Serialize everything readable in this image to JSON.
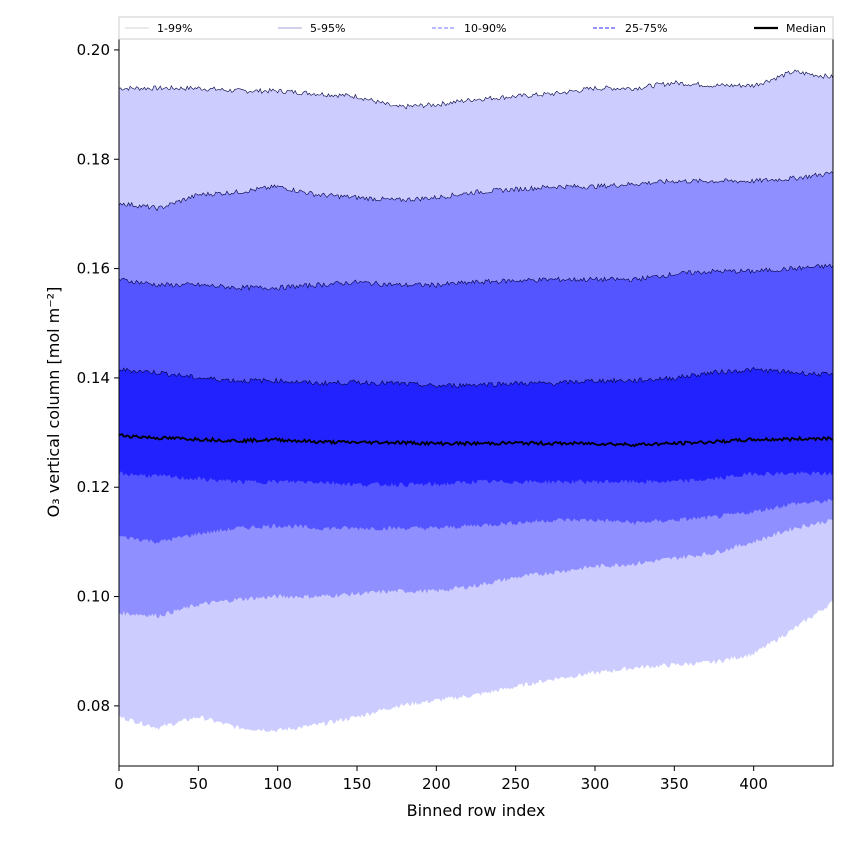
{
  "chart_data": {
    "type": "area",
    "title": "",
    "xlabel": "Binned row index",
    "ylabel": "O₃ vertical column [mol m⁻²]",
    "xlim": [
      0,
      450
    ],
    "ylim": [
      0.069,
      0.202
    ],
    "grid": false,
    "legend_position": "top",
    "x_ticks": [
      0,
      50,
      100,
      150,
      200,
      250,
      300,
      350,
      400
    ],
    "y_ticks": [
      0.08,
      0.1,
      0.12,
      0.14,
      0.16,
      0.18,
      0.2
    ],
    "x_tick_labels": [
      "0",
      "50",
      "100",
      "150",
      "200",
      "250",
      "300",
      "350",
      "400"
    ],
    "y_tick_labels": [
      "0.08",
      "0.10",
      "0.12",
      "0.14",
      "0.16",
      "0.18",
      "0.20"
    ],
    "x": [
      0,
      25,
      50,
      75,
      100,
      125,
      150,
      175,
      200,
      225,
      250,
      275,
      300,
      325,
      350,
      375,
      400,
      425,
      450
    ],
    "bands": [
      {
        "name": "1-99%",
        "color": "#ccccff",
        "lower": [
          0.078,
          0.076,
          0.078,
          0.076,
          0.0755,
          0.0765,
          0.078,
          0.08,
          0.081,
          0.082,
          0.0835,
          0.085,
          0.086,
          0.087,
          0.0875,
          0.088,
          0.0895,
          0.094,
          0.099
        ],
        "upper": [
          0.193,
          0.193,
          0.193,
          0.1925,
          0.1925,
          0.192,
          0.1915,
          0.1895,
          0.19,
          0.191,
          0.1915,
          0.192,
          0.193,
          0.193,
          0.194,
          0.1935,
          0.1935,
          0.196,
          0.195
        ]
      },
      {
        "name": "5-95%",
        "color": "#8f8fff",
        "lower": [
          0.097,
          0.0965,
          0.0985,
          0.0995,
          0.1,
          0.1,
          0.1005,
          0.101,
          0.101,
          0.102,
          0.1035,
          0.1045,
          0.1055,
          0.106,
          0.107,
          0.108,
          0.11,
          0.1125,
          0.114
        ],
        "upper": [
          0.172,
          0.171,
          0.1735,
          0.174,
          0.175,
          0.1735,
          0.173,
          0.1725,
          0.173,
          0.174,
          0.1745,
          0.175,
          0.175,
          0.1755,
          0.176,
          0.176,
          0.176,
          0.1765,
          0.1775
        ]
      },
      {
        "name": "10-90%",
        "color": "#5555ff",
        "lower": [
          0.111,
          0.11,
          0.1115,
          0.1125,
          0.113,
          0.1125,
          0.1125,
          0.1125,
          0.1125,
          0.113,
          0.1135,
          0.114,
          0.114,
          0.1135,
          0.114,
          0.1145,
          0.1155,
          0.117,
          0.1175
        ],
        "upper": [
          0.158,
          0.157,
          0.157,
          0.1565,
          0.1565,
          0.157,
          0.1575,
          0.157,
          0.157,
          0.1575,
          0.1578,
          0.158,
          0.158,
          0.158,
          0.159,
          0.1595,
          0.1595,
          0.16,
          0.1605
        ]
      },
      {
        "name": "25-75%",
        "color": "#2222ff",
        "lower": [
          0.1225,
          0.122,
          0.1215,
          0.121,
          0.121,
          0.121,
          0.1205,
          0.1205,
          0.1205,
          0.121,
          0.121,
          0.121,
          0.121,
          0.121,
          0.121,
          0.1215,
          0.1225,
          0.1225,
          0.1225
        ],
        "upper": [
          0.1415,
          0.141,
          0.14,
          0.1395,
          0.1395,
          0.139,
          0.1392,
          0.139,
          0.1385,
          0.1388,
          0.139,
          0.139,
          0.1395,
          0.1395,
          0.14,
          0.141,
          0.1415,
          0.141,
          0.1405
        ]
      }
    ],
    "median": {
      "name": "Median",
      "color": "#000000",
      "values": [
        0.1295,
        0.129,
        0.1288,
        0.1285,
        0.1287,
        0.1283,
        0.1282,
        0.1282,
        0.128,
        0.128,
        0.1281,
        0.128,
        0.128,
        0.1278,
        0.128,
        0.1283,
        0.1287,
        0.1288,
        0.129
      ]
    },
    "legend": [
      {
        "label": "1-99%",
        "color": "#dddddd",
        "style": "solid"
      },
      {
        "label": "5-95%",
        "color": "#b5b5dd",
        "style": "solid"
      },
      {
        "label": "10-90%",
        "color": "#8f8fff",
        "style": "dashed"
      },
      {
        "label": "25-75%",
        "color": "#5555ff",
        "style": "dashed"
      },
      {
        "label": "Median",
        "color": "#000000",
        "style": "solid"
      }
    ]
  }
}
